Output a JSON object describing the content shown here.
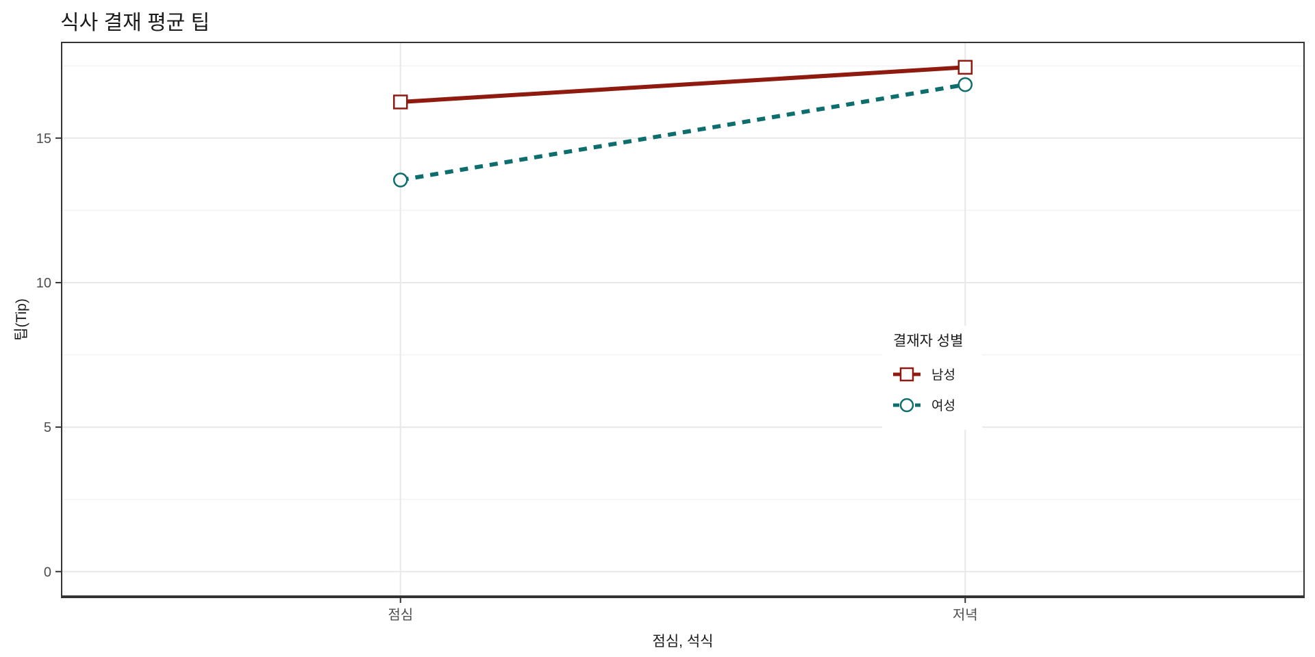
{
  "chart_data": {
    "type": "line",
    "title": "식사 결재 평균 팁",
    "xlabel": "점심, 석식",
    "ylabel": "팁(Tip)",
    "categories": [
      "점심",
      "저녁"
    ],
    "series": [
      {
        "name": "남성",
        "values": [
          16.25,
          17.45
        ],
        "color": "#8E1A10",
        "linestyle": "solid",
        "marker": "square-open"
      },
      {
        "name": "여성",
        "values": [
          13.55,
          16.85
        ],
        "color": "#0E6E6E",
        "linestyle": "dashed",
        "marker": "circle-open"
      }
    ],
    "yticks": [
      0,
      5,
      10,
      15
    ],
    "minor_yticks": [
      2.5,
      7.5,
      12.5,
      17.5
    ],
    "ylim": [
      -0.87,
      18.31
    ],
    "grid": true,
    "legend": {
      "title": "결재자 성별",
      "position": "inside-right"
    }
  },
  "theme": {
    "grid_major": "#e8e8e8",
    "grid_minor": "#f3f3f3",
    "panel_border": "#333333",
    "axis_line": "#333333",
    "tick_color": "#333333",
    "tick_label_color": "#4d4d4d",
    "text_color": "#1a1a1a",
    "background": "#ffffff"
  }
}
